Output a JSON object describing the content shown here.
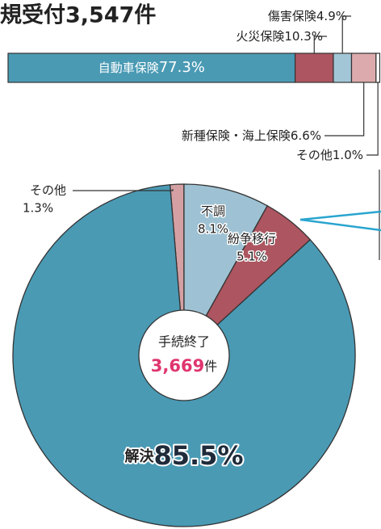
{
  "chart_data": [
    {
      "type": "stacked-bar",
      "title": "規受付3,547件",
      "xlim": [
        0,
        100
      ],
      "series": [
        {
          "name": "自動車保険",
          "color": "#4a9ab4",
          "values": [
            77.3
          ],
          "value_labels": [
            "77.3%"
          ]
        },
        {
          "name": "火災保険",
          "color": "#ad5560",
          "values": [
            10.3
          ],
          "value_labels": [
            "10.3%"
          ]
        },
        {
          "name": "傷害保険",
          "color": "#a2c6d6",
          "values": [
            4.9
          ],
          "value_labels": [
            "4.9%"
          ]
        },
        {
          "name": "新種保険・海上保険",
          "color": "#dcaaac",
          "values": [
            6.6
          ],
          "value_labels": [
            "6.6%"
          ]
        },
        {
          "name": "その他",
          "color": "#ffffff",
          "values": [
            1.0
          ],
          "value_labels": [
            "1.0%"
          ]
        }
      ]
    },
    {
      "type": "pie",
      "categories": [
        "その他",
        "不調",
        "紛争移行",
        "解決"
      ],
      "values": [
        1.3,
        8.1,
        5.1,
        85.5
      ],
      "value_labels": [
        "1.3%",
        "8.1%",
        "5.1%",
        "85.5%"
      ],
      "colors": [
        "#d4a0a3",
        "#9ec2d3",
        "#ad5560",
        "#4a9ab4"
      ],
      "annotations": [
        "手続終了",
        "3,669",
        "件"
      ]
    }
  ]
}
